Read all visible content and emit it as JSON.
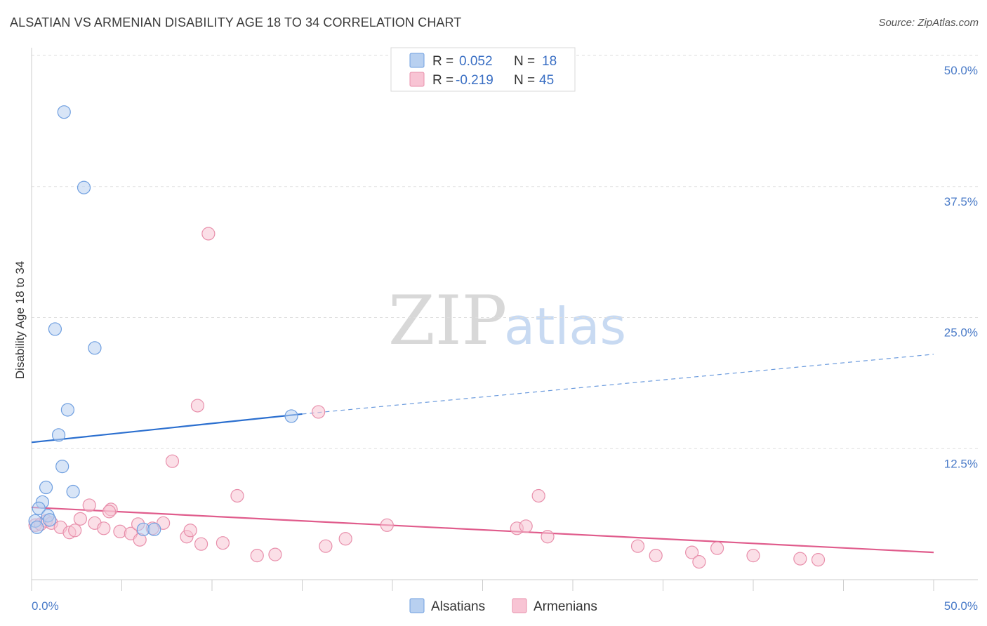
{
  "title": "ALSATIAN VS ARMENIAN DISABILITY AGE 18 TO 34 CORRELATION CHART",
  "source": "Source: ZipAtlas.com",
  "watermark": {
    "zip": "ZIP",
    "atlas": "atlas"
  },
  "legend": {
    "rows": [
      {
        "r_label": "R =",
        "r_value": "0.052",
        "n_label": "N =",
        "n_value": "18"
      },
      {
        "r_label": "R =",
        "r_value": "-0.219",
        "n_label": "N =",
        "n_value": "45"
      }
    ]
  },
  "bottom_legend": [
    "Alsatians",
    "Armenians"
  ],
  "colors": {
    "alsatians_fill": "#b8d0f0",
    "alsatians_stroke": "#6f9fe0",
    "alsatians_line": "#2b6fcf",
    "armenians_fill": "#f8c4d4",
    "armenians_stroke": "#e88fab",
    "armenians_line": "#e05c8c"
  },
  "chart_data": {
    "type": "scatter",
    "title": "ALSATIAN VS ARMENIAN DISABILITY AGE 18 TO 34 CORRELATION CHART",
    "xlabel": "",
    "ylabel": "Disability Age 18 to 34",
    "xlim": [
      0,
      50
    ],
    "ylim": [
      0,
      50
    ],
    "x_tick_labels": [
      "0.0%",
      "50.0%"
    ],
    "y_ticks": [
      12.5,
      25.0,
      37.5,
      50.0
    ],
    "y_tick_labels": [
      "12.5%",
      "25.0%",
      "37.5%",
      "50.0%"
    ],
    "grid": true,
    "legend_position": "top-center",
    "series": [
      {
        "name": "Alsatians",
        "points": [
          [
            1.8,
            44.6
          ],
          [
            2.9,
            37.4
          ],
          [
            1.3,
            23.9
          ],
          [
            3.5,
            22.1
          ],
          [
            2.0,
            16.2
          ],
          [
            1.5,
            13.8
          ],
          [
            1.7,
            10.8
          ],
          [
            0.8,
            8.8
          ],
          [
            2.3,
            8.4
          ],
          [
            0.6,
            7.4
          ],
          [
            0.4,
            6.8
          ],
          [
            0.9,
            6.1
          ],
          [
            1.0,
            5.7
          ],
          [
            0.2,
            5.6
          ],
          [
            0.3,
            5.0
          ],
          [
            6.2,
            4.8
          ],
          [
            6.8,
            4.8
          ],
          [
            14.4,
            15.6
          ]
        ],
        "trend": {
          "x0": 0,
          "y0": 13.1,
          "x1": 15,
          "y1": 15.8,
          "dashed_to_x": 50,
          "dashed_to_y": 21.5
        }
      },
      {
        "name": "Armenians",
        "points": [
          [
            9.8,
            33.0
          ],
          [
            9.2,
            16.6
          ],
          [
            15.9,
            16.0
          ],
          [
            7.8,
            11.3
          ],
          [
            11.4,
            8.0
          ],
          [
            28.1,
            8.0
          ],
          [
            3.2,
            7.1
          ],
          [
            4.4,
            6.7
          ],
          [
            0.2,
            5.2
          ],
          [
            0.5,
            5.3
          ],
          [
            0.8,
            5.6
          ],
          [
            1.1,
            5.4
          ],
          [
            1.6,
            5.0
          ],
          [
            2.1,
            4.5
          ],
          [
            2.4,
            4.7
          ],
          [
            2.7,
            5.8
          ],
          [
            3.5,
            5.4
          ],
          [
            4.0,
            4.9
          ],
          [
            4.3,
            6.5
          ],
          [
            4.9,
            4.6
          ],
          [
            5.5,
            4.4
          ],
          [
            5.9,
            5.3
          ],
          [
            6.0,
            3.8
          ],
          [
            6.7,
            4.9
          ],
          [
            7.3,
            5.4
          ],
          [
            8.6,
            4.1
          ],
          [
            8.8,
            4.7
          ],
          [
            9.4,
            3.4
          ],
          [
            10.6,
            3.5
          ],
          [
            12.5,
            2.3
          ],
          [
            13.5,
            2.4
          ],
          [
            16.3,
            3.2
          ],
          [
            17.4,
            3.9
          ],
          [
            19.7,
            5.2
          ],
          [
            26.9,
            4.9
          ],
          [
            27.4,
            5.1
          ],
          [
            28.6,
            4.1
          ],
          [
            33.6,
            3.2
          ],
          [
            34.6,
            2.3
          ],
          [
            36.6,
            2.6
          ],
          [
            37.0,
            1.7
          ],
          [
            38.0,
            3.0
          ],
          [
            40.0,
            2.3
          ],
          [
            42.6,
            2.0
          ],
          [
            43.6,
            1.9
          ]
        ],
        "trend": {
          "x0": 0,
          "y0": 6.9,
          "x1": 50,
          "y1": 2.6
        }
      }
    ]
  }
}
